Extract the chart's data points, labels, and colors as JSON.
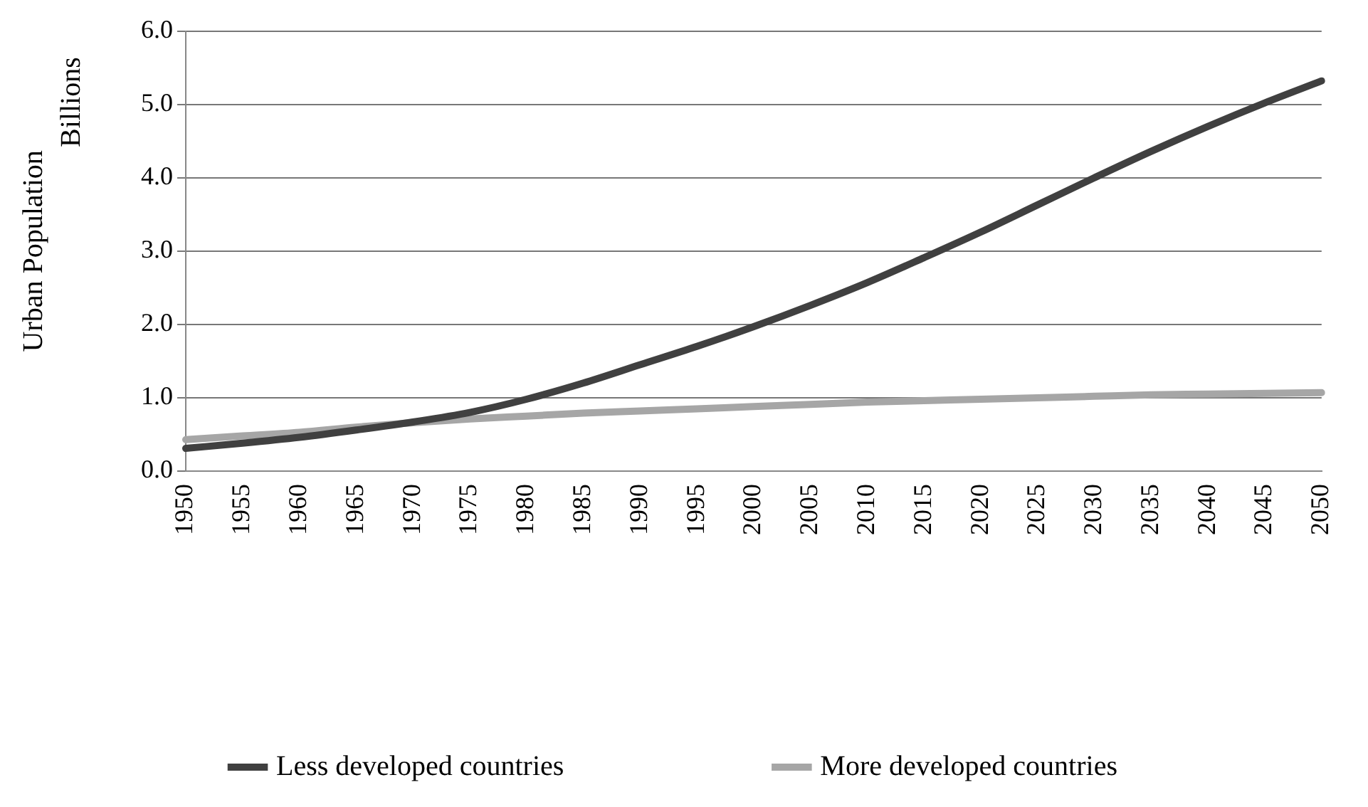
{
  "chart_data": {
    "type": "line",
    "ylabel": "Urban Population",
    "annotations": [
      "Billions"
    ],
    "categories": [
      "1950",
      "1955",
      "1960",
      "1965",
      "1970",
      "1975",
      "1980",
      "1985",
      "1990",
      "1995",
      "2000",
      "2005",
      "2010",
      "2015",
      "2020",
      "2025",
      "2030",
      "2035",
      "2040",
      "2045",
      "2050"
    ],
    "series": [
      {
        "name": "Less developed countries",
        "color": "#404040",
        "values": [
          0.31,
          0.38,
          0.46,
          0.56,
          0.67,
          0.8,
          0.98,
          1.2,
          1.45,
          1.7,
          1.97,
          2.26,
          2.57,
          2.91,
          3.26,
          3.63,
          4.0,
          4.36,
          4.7,
          5.02,
          5.32
        ]
      },
      {
        "name": "More developed countries",
        "color": "#a6a6a6",
        "values": [
          0.43,
          0.48,
          0.53,
          0.6,
          0.66,
          0.71,
          0.75,
          0.79,
          0.82,
          0.85,
          0.88,
          0.91,
          0.94,
          0.96,
          0.98,
          1.0,
          1.02,
          1.04,
          1.05,
          1.06,
          1.07
        ]
      }
    ],
    "ylim": [
      0,
      6
    ],
    "yticks": [
      {
        "value": 0,
        "label": "0.0"
      },
      {
        "value": 1,
        "label": "1.0"
      },
      {
        "value": 2,
        "label": "2.0"
      },
      {
        "value": 3,
        "label": "3.0"
      },
      {
        "value": 4,
        "label": "4.0"
      },
      {
        "value": 5,
        "label": "5.0"
      },
      {
        "value": 6,
        "label": "6.0"
      }
    ],
    "grid": "y",
    "legend": "bottom",
    "marker": "none",
    "line_style": "solid"
  }
}
